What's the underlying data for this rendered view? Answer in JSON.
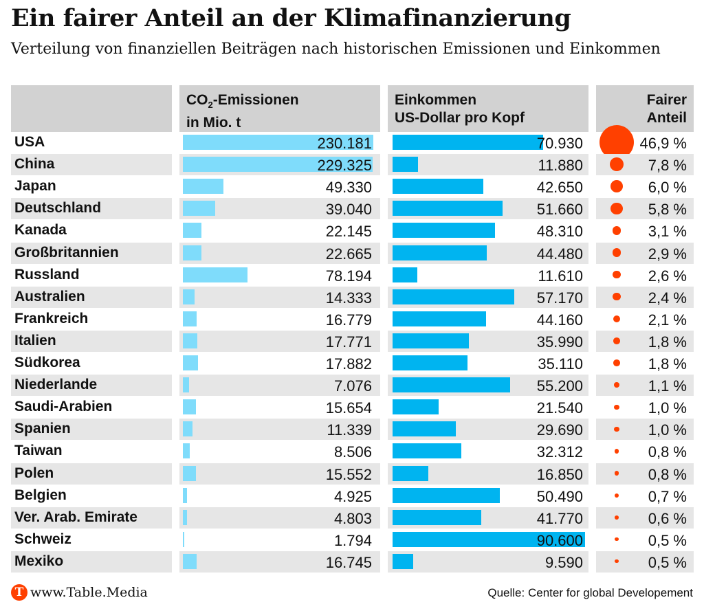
{
  "title": "Ein fairer Anteil an der Klimafinanzierung",
  "subtitle": "Verteilung von finanziellen Beiträgen nach historischen Emissionen und Einkommen",
  "headers": {
    "emissions_pre": "CO",
    "emissions_sub": "2",
    "emissions_post": "-Emissionen",
    "emissions_line2": "in Mio. t",
    "income_line1": "Einkommen",
    "income_line2": "US-Dollar pro Kopf",
    "share_line1": "Fairer",
    "share_line2": "Anteil"
  },
  "footer": {
    "logo_letter": "T",
    "url": "www.Table.Media",
    "source": "Quelle: Center for global Developement"
  },
  "colors": {
    "emissions_bar": "#7fdcfb",
    "income_bar": "#00b4f0",
    "share_dot": "#ff4000",
    "header_bg": "#d2d2d2",
    "row_shade": "#e6e6e6"
  },
  "chart_data": {
    "type": "table",
    "columns": [
      "CO2-Emissionen in Mio. t",
      "Einkommen US-Dollar pro Kopf",
      "Fairer Anteil"
    ],
    "emissions_max": 230181,
    "income_max": 90600,
    "rows": [
      {
        "country": "USA",
        "emissions": 230181,
        "emissions_label": "230.181",
        "income": 70930,
        "income_label": "70.930",
        "share": 46.9,
        "share_label": "46,9 %"
      },
      {
        "country": "China",
        "emissions": 229325,
        "emissions_label": "229.325",
        "income": 11880,
        "income_label": "11.880",
        "share": 7.8,
        "share_label": "7,8 %"
      },
      {
        "country": "Japan",
        "emissions": 49330,
        "emissions_label": "49.330",
        "income": 42650,
        "income_label": "42.650",
        "share": 6.0,
        "share_label": "6,0 %"
      },
      {
        "country": "Deutschland",
        "emissions": 39040,
        "emissions_label": "39.040",
        "income": 51660,
        "income_label": "51.660",
        "share": 5.8,
        "share_label": "5,8 %"
      },
      {
        "country": "Kanada",
        "emissions": 22145,
        "emissions_label": "22.145",
        "income": 48310,
        "income_label": "48.310",
        "share": 3.1,
        "share_label": "3,1 %"
      },
      {
        "country": "Großbritannien",
        "emissions": 22665,
        "emissions_label": "22.665",
        "income": 44480,
        "income_label": "44.480",
        "share": 2.9,
        "share_label": "2,9 %"
      },
      {
        "country": "Russland",
        "emissions": 78194,
        "emissions_label": "78.194",
        "income": 11610,
        "income_label": "11.610",
        "share": 2.6,
        "share_label": "2,6 %"
      },
      {
        "country": "Australien",
        "emissions": 14333,
        "emissions_label": "14.333",
        "income": 57170,
        "income_label": "57.170",
        "share": 2.4,
        "share_label": "2,4 %"
      },
      {
        "country": "Frankreich",
        "emissions": 16779,
        "emissions_label": "16.779",
        "income": 44160,
        "income_label": "44.160",
        "share": 2.1,
        "share_label": "2,1 %"
      },
      {
        "country": "Italien",
        "emissions": 17771,
        "emissions_label": "17.771",
        "income": 35990,
        "income_label": "35.990",
        "share": 1.8,
        "share_label": "1,8 %"
      },
      {
        "country": "Südkorea",
        "emissions": 17882,
        "emissions_label": "17.882",
        "income": 35110,
        "income_label": "35.110",
        "share": 1.8,
        "share_label": "1,8 %"
      },
      {
        "country": "Niederlande",
        "emissions": 7076,
        "emissions_label": "7.076",
        "income": 55200,
        "income_label": "55.200",
        "share": 1.1,
        "share_label": "1,1 %"
      },
      {
        "country": "Saudi-Arabien",
        "emissions": 15654,
        "emissions_label": "15.654",
        "income": 21540,
        "income_label": "21.540",
        "share": 1.0,
        "share_label": "1,0 %"
      },
      {
        "country": "Spanien",
        "emissions": 11339,
        "emissions_label": "11.339",
        "income": 29690,
        "income_label": "29.690",
        "share": 1.0,
        "share_label": "1,0 %"
      },
      {
        "country": "Taiwan",
        "emissions": 8506,
        "emissions_label": "8.506",
        "income": 32312,
        "income_label": "32.312",
        "share": 0.8,
        "share_label": "0,8 %"
      },
      {
        "country": "Polen",
        "emissions": 15552,
        "emissions_label": "15.552",
        "income": 16850,
        "income_label": "16.850",
        "share": 0.8,
        "share_label": "0,8 %"
      },
      {
        "country": "Belgien",
        "emissions": 4925,
        "emissions_label": "4.925",
        "income": 50490,
        "income_label": "50.490",
        "share": 0.7,
        "share_label": "0,7 %"
      },
      {
        "country": "Ver. Arab. Emirate",
        "emissions": 4803,
        "emissions_label": "4.803",
        "income": 41770,
        "income_label": "41.770",
        "share": 0.6,
        "share_label": "0,6 %"
      },
      {
        "country": "Schweiz",
        "emissions": 1794,
        "emissions_label": "1.794",
        "income": 90600,
        "income_label": "90.600",
        "share": 0.5,
        "share_label": "0,5 %"
      },
      {
        "country": "Mexiko",
        "emissions": 16745,
        "emissions_label": "16.745",
        "income": 9590,
        "income_label": "9.590",
        "share": 0.5,
        "share_label": "0,5 %"
      }
    ]
  }
}
